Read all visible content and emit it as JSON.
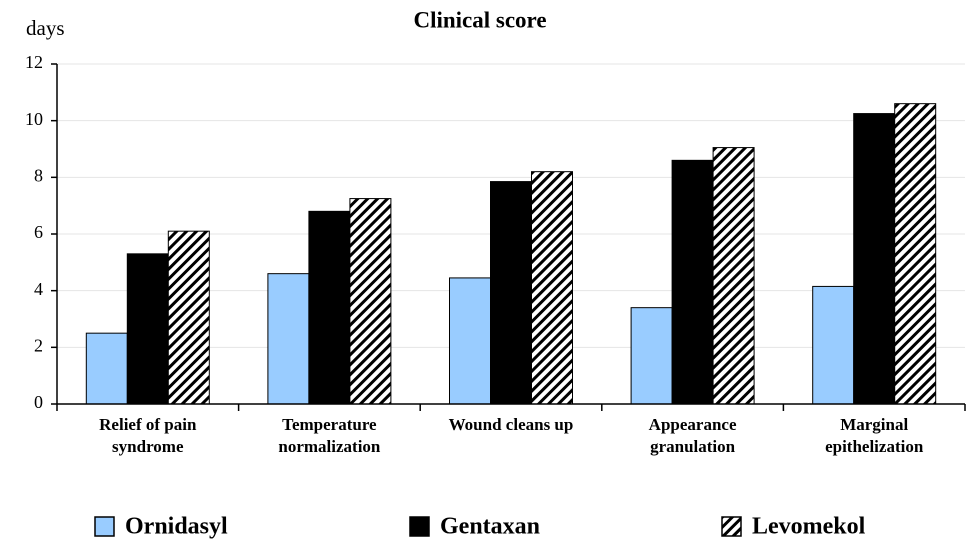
{
  "chart_data": {
    "type": "bar",
    "title": "Clinical score",
    "y_label": "days",
    "categories": [
      "Relief of pain syndrome",
      "Temperature normalization",
      "Wound cleans up",
      "Appearance granulation",
      "Marginal epithelization"
    ],
    "series": [
      {
        "name": "Ornidasyl",
        "color": "#99ccff",
        "values": [
          2.5,
          4.6,
          4.45,
          3.4,
          4.15
        ]
      },
      {
        "name": "Gentaxan",
        "color": "#000000",
        "values": [
          5.3,
          6.8,
          7.85,
          8.6,
          10.25
        ]
      },
      {
        "name": "Levomekol",
        "color": "#000000",
        "pattern": "hatch",
        "values": [
          6.1,
          7.25,
          8.2,
          9.05,
          10.6
        ]
      }
    ],
    "ylim": [
      0,
      12
    ],
    "yticks": [
      0,
      2,
      4,
      6,
      8,
      10,
      12
    ],
    "grid": true,
    "legend": "bottom"
  }
}
